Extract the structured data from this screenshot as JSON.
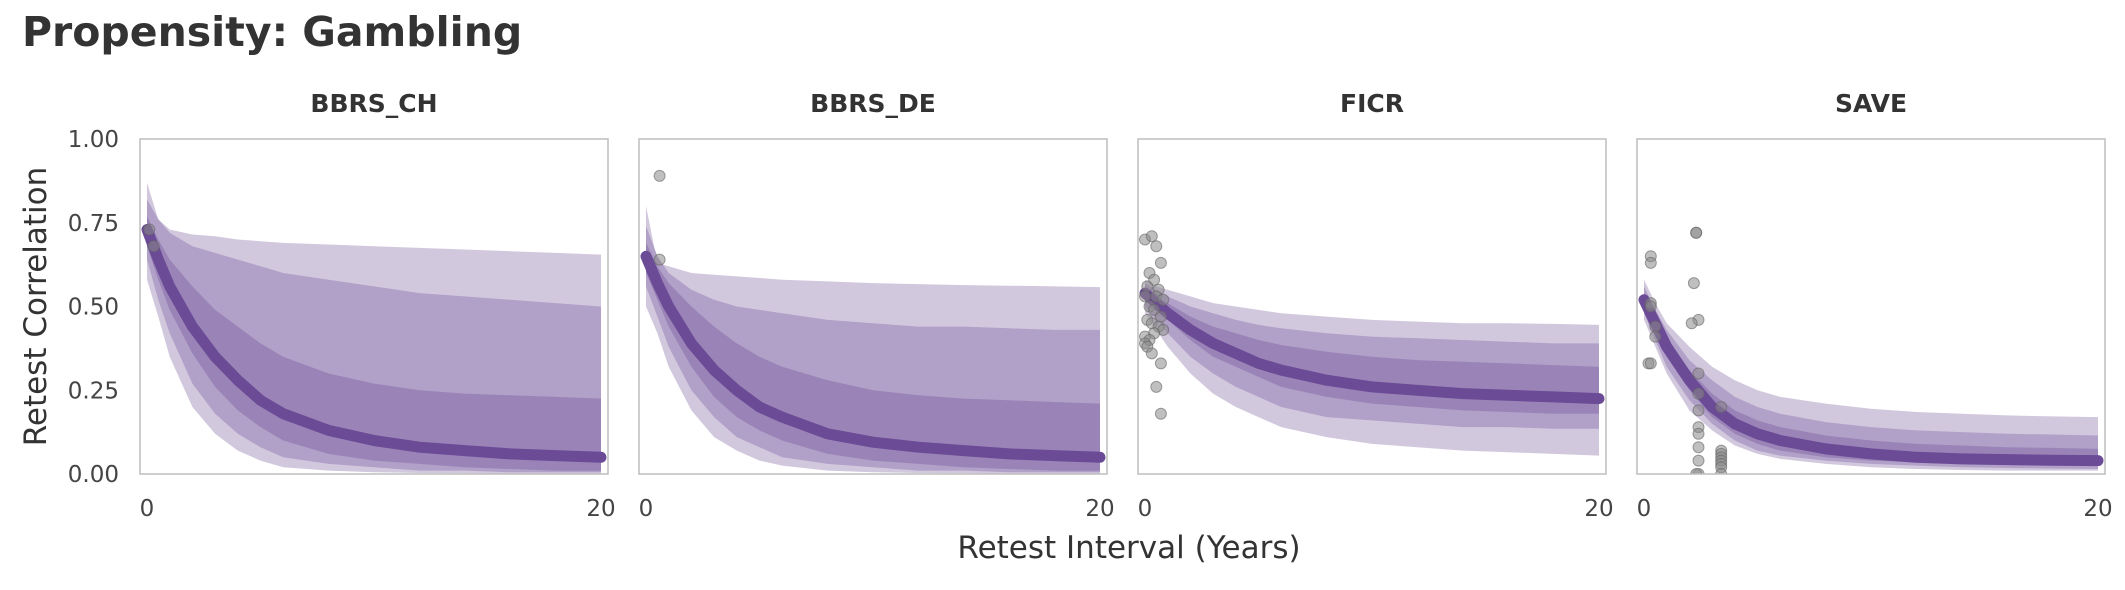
{
  "title": "Propensity: Gambling",
  "chart_data": {
    "type": "line",
    "title": "Propensity: Gambling",
    "xlabel": "Retest Interval (Years)",
    "ylabel": "Retest Correlation",
    "xlim": [
      0,
      20
    ],
    "ylim": [
      0,
      1
    ],
    "x_ticks": [
      "0",
      "20"
    ],
    "y_ticks": [
      "0.00",
      "0.25",
      "0.50",
      "0.75",
      "1.00"
    ],
    "colors": {
      "line": "#6b4a96",
      "band_outer": "#d2c8dd",
      "band_mid": "#b1a0c8",
      "band_inner": "#9a84b7",
      "points": "#8a8a8a"
    },
    "bands": [
      "95%",
      "80%",
      "50%"
    ],
    "facets": [
      {
        "name": "BBRS_CH",
        "x": [
          0,
          0.5,
          1,
          2,
          3,
          4,
          5,
          6,
          8,
          10,
          12,
          14,
          16,
          18,
          20
        ],
        "median": [
          0.73,
          0.64,
          0.56,
          0.44,
          0.35,
          0.28,
          0.22,
          0.18,
          0.13,
          0.1,
          0.08,
          0.07,
          0.06,
          0.055,
          0.05
        ],
        "q50": [
          [
            0.77,
            0.68
          ],
          [
            0.7,
            0.58
          ],
          [
            0.64,
            0.49
          ],
          [
            0.56,
            0.36
          ],
          [
            0.49,
            0.26
          ],
          [
            0.44,
            0.19
          ],
          [
            0.39,
            0.14
          ],
          [
            0.35,
            0.1
          ],
          [
            0.3,
            0.06
          ],
          [
            0.27,
            0.04
          ],
          [
            0.25,
            0.03
          ],
          [
            0.24,
            0.02
          ],
          [
            0.235,
            0.015
          ],
          [
            0.23,
            0.01
          ],
          [
            0.225,
            0.01
          ]
        ],
        "q80": [
          [
            0.82,
            0.64
          ],
          [
            0.76,
            0.52
          ],
          [
            0.72,
            0.42
          ],
          [
            0.68,
            0.27
          ],
          [
            0.66,
            0.18
          ],
          [
            0.64,
            0.12
          ],
          [
            0.62,
            0.08
          ],
          [
            0.6,
            0.05
          ],
          [
            0.58,
            0.03
          ],
          [
            0.56,
            0.02
          ],
          [
            0.54,
            0.01
          ],
          [
            0.53,
            0.01
          ],
          [
            0.52,
            0.005
          ],
          [
            0.51,
            0.005
          ],
          [
            0.5,
            0.005
          ]
        ],
        "q95": [
          [
            0.87,
            0.58
          ],
          [
            0.76,
            0.47
          ],
          [
            0.73,
            0.35
          ],
          [
            0.715,
            0.2
          ],
          [
            0.71,
            0.12
          ],
          [
            0.7,
            0.07
          ],
          [
            0.695,
            0.04
          ],
          [
            0.69,
            0.02
          ],
          [
            0.685,
            0.01
          ],
          [
            0.68,
            0.005
          ],
          [
            0.675,
            0.003
          ],
          [
            0.67,
            0.002
          ],
          [
            0.665,
            0.001
          ],
          [
            0.66,
            0.001
          ],
          [
            0.655,
            0.001
          ]
        ],
        "points": [
          {
            "x": 0.1,
            "y": 0.73
          },
          {
            "x": 0.3,
            "y": 0.68
          }
        ]
      },
      {
        "name": "BBRS_DE",
        "x": [
          0,
          0.5,
          1,
          2,
          3,
          4,
          5,
          6,
          8,
          10,
          12,
          14,
          16,
          18,
          20
        ],
        "median": [
          0.65,
          0.57,
          0.5,
          0.39,
          0.31,
          0.25,
          0.2,
          0.17,
          0.12,
          0.095,
          0.08,
          0.07,
          0.06,
          0.055,
          0.05
        ],
        "q50": [
          [
            0.69,
            0.6
          ],
          [
            0.62,
            0.52
          ],
          [
            0.57,
            0.44
          ],
          [
            0.5,
            0.32
          ],
          [
            0.44,
            0.23
          ],
          [
            0.39,
            0.17
          ],
          [
            0.35,
            0.13
          ],
          [
            0.32,
            0.1
          ],
          [
            0.28,
            0.06
          ],
          [
            0.25,
            0.04
          ],
          [
            0.235,
            0.03
          ],
          [
            0.225,
            0.02
          ],
          [
            0.22,
            0.015
          ],
          [
            0.215,
            0.01
          ],
          [
            0.21,
            0.01
          ]
        ],
        "q80": [
          [
            0.74,
            0.56
          ],
          [
            0.65,
            0.47
          ],
          [
            0.6,
            0.38
          ],
          [
            0.55,
            0.25
          ],
          [
            0.52,
            0.17
          ],
          [
            0.5,
            0.11
          ],
          [
            0.49,
            0.08
          ],
          [
            0.48,
            0.05
          ],
          [
            0.46,
            0.03
          ],
          [
            0.45,
            0.02
          ],
          [
            0.44,
            0.01
          ],
          [
            0.44,
            0.01
          ],
          [
            0.435,
            0.005
          ],
          [
            0.43,
            0.005
          ],
          [
            0.43,
            0.005
          ]
        ],
        "q95": [
          [
            0.8,
            0.5
          ],
          [
            0.63,
            0.42
          ],
          [
            0.62,
            0.32
          ],
          [
            0.6,
            0.19
          ],
          [
            0.595,
            0.11
          ],
          [
            0.59,
            0.07
          ],
          [
            0.585,
            0.04
          ],
          [
            0.58,
            0.025
          ],
          [
            0.575,
            0.01
          ],
          [
            0.57,
            0.005
          ],
          [
            0.567,
            0.003
          ],
          [
            0.564,
            0.002
          ],
          [
            0.562,
            0.001
          ],
          [
            0.56,
            0.001
          ],
          [
            0.558,
            0.001
          ]
        ],
        "points": [
          {
            "x": 0.6,
            "y": 0.89
          },
          {
            "x": 0.6,
            "y": 0.64
          }
        ]
      },
      {
        "name": "FICR",
        "x": [
          0,
          0.5,
          1,
          2,
          3,
          4,
          5,
          6,
          8,
          10,
          12,
          14,
          16,
          18,
          20
        ],
        "median": [
          0.54,
          0.51,
          0.48,
          0.43,
          0.39,
          0.36,
          0.33,
          0.31,
          0.28,
          0.26,
          0.25,
          0.24,
          0.235,
          0.23,
          0.225
        ],
        "q50": [
          [
            0.56,
            0.52
          ],
          [
            0.53,
            0.49
          ],
          [
            0.51,
            0.46
          ],
          [
            0.47,
            0.4
          ],
          [
            0.44,
            0.35
          ],
          [
            0.42,
            0.32
          ],
          [
            0.4,
            0.29
          ],
          [
            0.385,
            0.26
          ],
          [
            0.365,
            0.23
          ],
          [
            0.35,
            0.21
          ],
          [
            0.34,
            0.2
          ],
          [
            0.335,
            0.19
          ],
          [
            0.33,
            0.185
          ],
          [
            0.325,
            0.18
          ],
          [
            0.32,
            0.18
          ]
        ],
        "q80": [
          [
            0.57,
            0.5
          ],
          [
            0.55,
            0.46
          ],
          [
            0.53,
            0.42
          ],
          [
            0.5,
            0.35
          ],
          [
            0.48,
            0.3
          ],
          [
            0.46,
            0.26
          ],
          [
            0.445,
            0.23
          ],
          [
            0.435,
            0.2
          ],
          [
            0.42,
            0.17
          ],
          [
            0.41,
            0.16
          ],
          [
            0.405,
            0.15
          ],
          [
            0.4,
            0.14
          ],
          [
            0.395,
            0.14
          ],
          [
            0.39,
            0.135
          ],
          [
            0.39,
            0.135
          ]
        ],
        "q95": [
          [
            0.58,
            0.48
          ],
          [
            0.56,
            0.43
          ],
          [
            0.55,
            0.38
          ],
          [
            0.53,
            0.3
          ],
          [
            0.51,
            0.24
          ],
          [
            0.5,
            0.2
          ],
          [
            0.49,
            0.17
          ],
          [
            0.48,
            0.14
          ],
          [
            0.47,
            0.11
          ],
          [
            0.46,
            0.09
          ],
          [
            0.455,
            0.08
          ],
          [
            0.45,
            0.07
          ],
          [
            0.45,
            0.065
          ],
          [
            0.448,
            0.06
          ],
          [
            0.445,
            0.055
          ]
        ],
        "points": [
          {
            "x": 0,
            "y": 0.7
          },
          {
            "x": 0.3,
            "y": 0.71
          },
          {
            "x": 0.5,
            "y": 0.68
          },
          {
            "x": 0.7,
            "y": 0.63
          },
          {
            "x": 0.2,
            "y": 0.6
          },
          {
            "x": 0.4,
            "y": 0.58
          },
          {
            "x": 0.1,
            "y": 0.56
          },
          {
            "x": 0.6,
            "y": 0.55
          },
          {
            "x": 0,
            "y": 0.53
          },
          {
            "x": 0.5,
            "y": 0.53
          },
          {
            "x": 0.8,
            "y": 0.52
          },
          {
            "x": 0.2,
            "y": 0.5
          },
          {
            "x": 0.4,
            "y": 0.49
          },
          {
            "x": 0.7,
            "y": 0.47
          },
          {
            "x": 0.1,
            "y": 0.46
          },
          {
            "x": 0.3,
            "y": 0.45
          },
          {
            "x": 0.6,
            "y": 0.44
          },
          {
            "x": 0.8,
            "y": 0.43
          },
          {
            "x": 0.4,
            "y": 0.42
          },
          {
            "x": 0,
            "y": 0.41
          },
          {
            "x": 0.2,
            "y": 0.4
          },
          {
            "x": 0,
            "y": 0.39
          },
          {
            "x": 0.1,
            "y": 0.38
          },
          {
            "x": 0.3,
            "y": 0.36
          },
          {
            "x": 0.7,
            "y": 0.33
          },
          {
            "x": 0.5,
            "y": 0.26
          },
          {
            "x": 0.7,
            "y": 0.18
          }
        ]
      },
      {
        "name": "SAVE",
        "x": [
          0,
          0.5,
          1,
          2,
          3,
          4,
          5,
          6,
          8,
          10,
          12,
          14,
          16,
          18,
          20
        ],
        "median": [
          0.52,
          0.45,
          0.38,
          0.28,
          0.2,
          0.15,
          0.12,
          0.1,
          0.075,
          0.06,
          0.05,
          0.045,
          0.043,
          0.041,
          0.04
        ],
        "q50": [
          [
            0.54,
            0.5
          ],
          [
            0.47,
            0.43
          ],
          [
            0.4,
            0.35
          ],
          [
            0.31,
            0.25
          ],
          [
            0.24,
            0.17
          ],
          [
            0.19,
            0.12
          ],
          [
            0.16,
            0.09
          ],
          [
            0.14,
            0.07
          ],
          [
            0.115,
            0.05
          ],
          [
            0.1,
            0.04
          ],
          [
            0.09,
            0.035
          ],
          [
            0.085,
            0.03
          ],
          [
            0.08,
            0.028
          ],
          [
            0.078,
            0.026
          ],
          [
            0.075,
            0.025
          ]
        ],
        "q80": [
          [
            0.56,
            0.48
          ],
          [
            0.49,
            0.4
          ],
          [
            0.43,
            0.32
          ],
          [
            0.34,
            0.22
          ],
          [
            0.28,
            0.15
          ],
          [
            0.23,
            0.1
          ],
          [
            0.2,
            0.07
          ],
          [
            0.18,
            0.055
          ],
          [
            0.155,
            0.04
          ],
          [
            0.14,
            0.03
          ],
          [
            0.13,
            0.025
          ],
          [
            0.125,
            0.02
          ],
          [
            0.12,
            0.018
          ],
          [
            0.118,
            0.016
          ],
          [
            0.115,
            0.015
          ]
        ],
        "q95": [
          [
            0.58,
            0.46
          ],
          [
            0.51,
            0.38
          ],
          [
            0.45,
            0.3
          ],
          [
            0.38,
            0.19
          ],
          [
            0.32,
            0.13
          ],
          [
            0.28,
            0.085
          ],
          [
            0.25,
            0.06
          ],
          [
            0.23,
            0.045
          ],
          [
            0.21,
            0.03
          ],
          [
            0.195,
            0.02
          ],
          [
            0.185,
            0.015
          ],
          [
            0.18,
            0.012
          ],
          [
            0.175,
            0.01
          ],
          [
            0.172,
            0.01
          ],
          [
            0.17,
            0.01
          ]
        ],
        "points": [
          {
            "x": 0.3,
            "y": 0.65
          },
          {
            "x": 0.3,
            "y": 0.63
          },
          {
            "x": 0.3,
            "y": 0.51
          },
          {
            "x": 0.3,
            "y": 0.5
          },
          {
            "x": 0.5,
            "y": 0.44
          },
          {
            "x": 0.5,
            "y": 0.41
          },
          {
            "x": 0.2,
            "y": 0.33
          },
          {
            "x": 0.3,
            "y": 0.33
          },
          {
            "x": 2.3,
            "y": 0.72
          },
          {
            "x": 2.3,
            "y": 0.72
          },
          {
            "x": 2.2,
            "y": 0.57
          },
          {
            "x": 2.4,
            "y": 0.46
          },
          {
            "x": 2.1,
            "y": 0.45
          },
          {
            "x": 2.4,
            "y": 0.3
          },
          {
            "x": 2.4,
            "y": 0.24
          },
          {
            "x": 2.4,
            "y": 0.19
          },
          {
            "x": 2.4,
            "y": 0.14
          },
          {
            "x": 2.4,
            "y": 0.12
          },
          {
            "x": 2.4,
            "y": 0.08
          },
          {
            "x": 2.4,
            "y": 0.04
          },
          {
            "x": 2.4,
            "y": 0
          },
          {
            "x": 2.3,
            "y": 0
          },
          {
            "x": 3.4,
            "y": 0.2
          },
          {
            "x": 3.4,
            "y": 0.07
          },
          {
            "x": 3.4,
            "y": 0.06
          },
          {
            "x": 3.4,
            "y": 0.05
          },
          {
            "x": 3.4,
            "y": 0.04
          },
          {
            "x": 3.4,
            "y": 0.03
          },
          {
            "x": 3.4,
            "y": 0.02
          },
          {
            "x": 3.4,
            "y": 0
          }
        ]
      }
    ]
  }
}
